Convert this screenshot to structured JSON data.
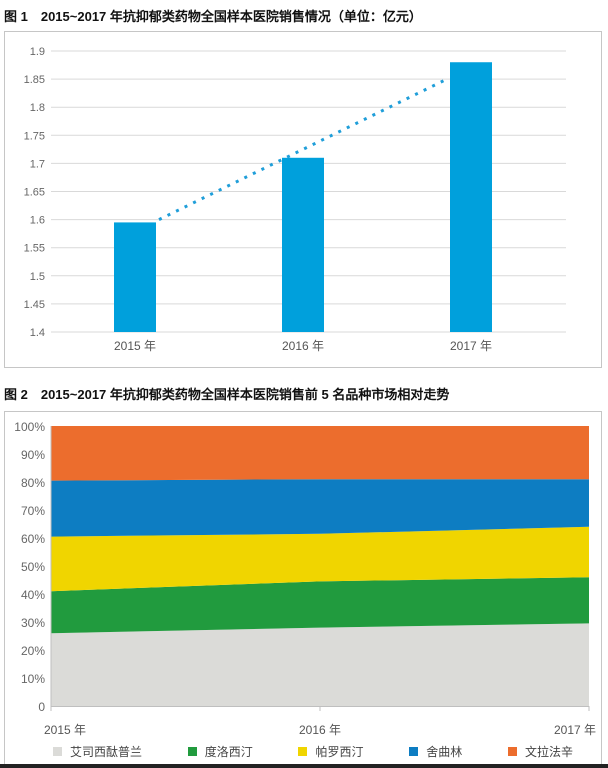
{
  "page": {
    "background": "#ffffff"
  },
  "chart_data": [
    {
      "type": "bar",
      "title": "图 1　2015~2017 年抗抑郁类药物全国样本医院销售情况（单位：亿元）",
      "categories": [
        "2015 年",
        "2016 年",
        "2017 年"
      ],
      "values": [
        1.595,
        1.71,
        1.88
      ],
      "xlabel": "",
      "ylabel": "",
      "ylim": [
        1.4,
        1.9
      ],
      "ytick_step": 0.05,
      "ytick_labels": [
        "1.4",
        "1.45",
        "1.5",
        "1.55",
        "1.6",
        "1.65",
        "1.7",
        "1.75",
        "1.8",
        "1.85",
        "1.9"
      ],
      "grid": true,
      "gridline_color": "#d9d9d9",
      "bar_color": "#00A0DC",
      "trendline": {
        "type": "linear",
        "style": "dotted",
        "color": "#1F9ED9",
        "start_value": 1.6,
        "end_value": 1.85
      },
      "legend_position": "none"
    },
    {
      "type": "area",
      "subtype": "stacked-100-percent",
      "title": "图 2　2015~2017 年抗抑郁类药物全国样本医院销售前 5 名品种市场相对走势",
      "categories": [
        "2015 年",
        "2016 年",
        "2017 年"
      ],
      "series": [
        {
          "name": "艾司西酞普兰",
          "color": "#DBDBD8",
          "values": [
            26.0,
            28.0,
            29.5
          ]
        },
        {
          "name": "度洛西汀",
          "color": "#219B3E",
          "values": [
            15.0,
            16.5,
            16.5
          ]
        },
        {
          "name": "帕罗西汀",
          "color": "#F0D500",
          "values": [
            19.5,
            17.0,
            18.0
          ]
        },
        {
          "name": "舍曲林",
          "color": "#0D7DC2",
          "values": [
            20.0,
            19.5,
            17.0
          ]
        },
        {
          "name": "文拉法辛",
          "color": "#EC6D2D",
          "values": [
            19.5,
            19.0,
            19.0
          ]
        }
      ],
      "ylim": [
        0,
        100
      ],
      "ytick_labels": [
        "0",
        "10%",
        "20%",
        "30%",
        "40%",
        "50%",
        "60%",
        "70%",
        "80%",
        "90%",
        "100%"
      ],
      "grid": false,
      "axis_color": "#bfbfbf",
      "legend_position": "bottom"
    }
  ]
}
